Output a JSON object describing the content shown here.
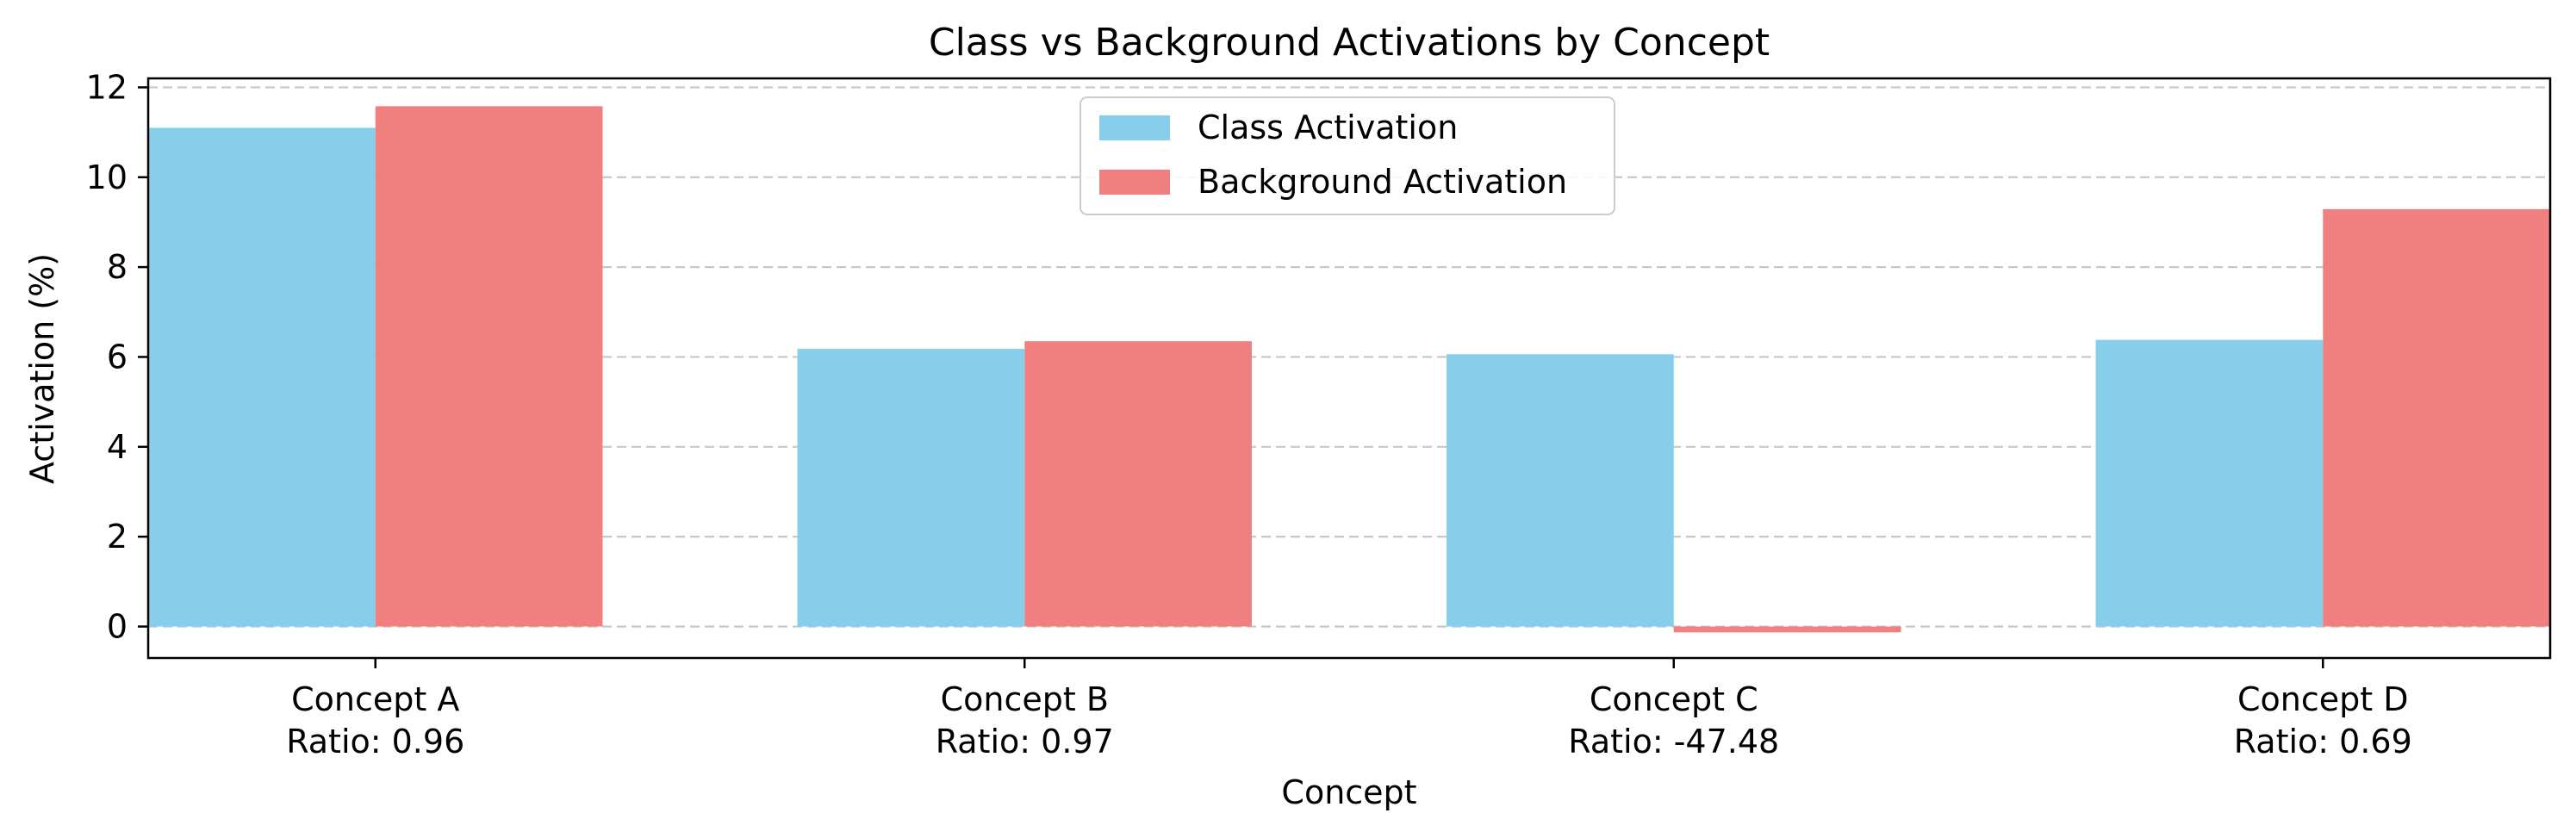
{
  "chart_data": {
    "type": "bar",
    "title": "Class vs Background Activations by Concept",
    "xlabel": "Concept",
    "ylabel": "Activation (%)",
    "categories": [
      "Concept A",
      "Concept B",
      "Concept C",
      "Concept D"
    ],
    "category_sublabels": [
      "Ratio: 0.96",
      "Ratio: 0.97",
      "Ratio: -47.48",
      "Ratio: 0.69"
    ],
    "series": [
      {
        "name": "Class Activation",
        "color": "#87ceeb",
        "values": [
          11.1,
          6.18,
          6.06,
          6.38
        ]
      },
      {
        "name": "Background Activation",
        "color": "#f08080",
        "values": [
          11.58,
          6.35,
          -0.13,
          9.29
        ]
      }
    ],
    "ylim": [
      -0.7,
      12.2
    ],
    "yticks": [
      0,
      2,
      4,
      6,
      8,
      10,
      12
    ],
    "grid": "y-dashed",
    "legend_position": "upper-center"
  }
}
